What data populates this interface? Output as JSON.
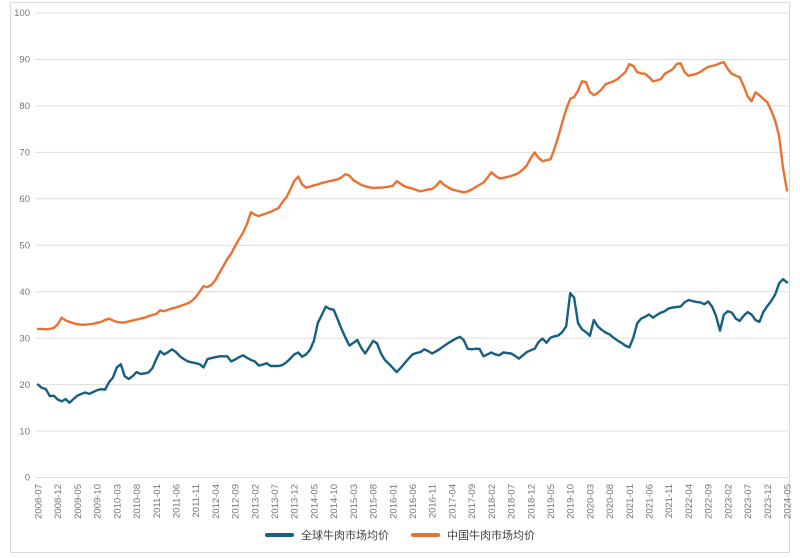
{
  "theme": {
    "background": "#FFFFFF",
    "card_border": "#D8D8D8",
    "gridline_color": "#DCDCDC",
    "tick_label_color": "#767676",
    "legend_text_color": "#3F3F3F"
  },
  "legend": {
    "items": [
      {
        "label": "全球牛肉市场均价",
        "color": "#156082"
      },
      {
        "label": "中国牛肉市场均价",
        "color": "#E97132"
      }
    ]
  },
  "chart_data": {
    "type": "line",
    "title": "",
    "xlabel": "",
    "ylabel": "",
    "ylim": [
      0,
      100
    ],
    "yticks": [
      0,
      10,
      20,
      30,
      40,
      50,
      60,
      70,
      80,
      90,
      100
    ],
    "grid": "horizontal",
    "legend_position": "bottom",
    "x_tick_interval": 5,
    "x_tick_labels": [
      "2008-07",
      "2008-12",
      "2009-05",
      "2009-10",
      "2010-03",
      "2010-08",
      "2011-01",
      "2011-06",
      "2011-11",
      "2012-04",
      "2012-09",
      "2013-02",
      "2013-07",
      "2013-12",
      "2014-05",
      "2014-10",
      "2015-03",
      "2015-08",
      "2016-01",
      "2016-06",
      "2016-11",
      "2017-04",
      "2017-09",
      "2018-02",
      "2018-07",
      "2018-12",
      "2019-05",
      "2019-10",
      "2020-03",
      "2020-08",
      "2021-01",
      "2021-06",
      "2021-11",
      "2022-04",
      "2022-09",
      "2023-02",
      "2023-07",
      "2023-12",
      "2024-05"
    ],
    "x": [
      "2008-07",
      "2008-08",
      "2008-09",
      "2008-10",
      "2008-11",
      "2008-12",
      "2009-01",
      "2009-02",
      "2009-03",
      "2009-04",
      "2009-05",
      "2009-06",
      "2009-07",
      "2009-08",
      "2009-09",
      "2009-10",
      "2009-11",
      "2009-12",
      "2010-01",
      "2010-02",
      "2010-03",
      "2010-04",
      "2010-05",
      "2010-06",
      "2010-07",
      "2010-08",
      "2010-09",
      "2010-10",
      "2010-11",
      "2010-12",
      "2011-01",
      "2011-02",
      "2011-03",
      "2011-04",
      "2011-05",
      "2011-06",
      "2011-07",
      "2011-08",
      "2011-09",
      "2011-10",
      "2011-11",
      "2011-12",
      "2012-01",
      "2012-02",
      "2012-03",
      "2012-04",
      "2012-05",
      "2012-06",
      "2012-07",
      "2012-08",
      "2012-09",
      "2012-10",
      "2012-11",
      "2012-12",
      "2013-01",
      "2013-02",
      "2013-03",
      "2013-04",
      "2013-05",
      "2013-06",
      "2013-07",
      "2013-08",
      "2013-09",
      "2013-10",
      "2013-11",
      "2013-12",
      "2014-01",
      "2014-02",
      "2014-03",
      "2014-04",
      "2014-05",
      "2014-06",
      "2014-07",
      "2014-08",
      "2014-09",
      "2014-10",
      "2014-11",
      "2014-12",
      "2015-01",
      "2015-02",
      "2015-03",
      "2015-04",
      "2015-05",
      "2015-06",
      "2015-07",
      "2015-08",
      "2015-09",
      "2015-10",
      "2015-11",
      "2015-12",
      "2016-01",
      "2016-02",
      "2016-03",
      "2016-04",
      "2016-05",
      "2016-06",
      "2016-07",
      "2016-08",
      "2016-09",
      "2016-10",
      "2016-11",
      "2016-12",
      "2017-01",
      "2017-02",
      "2017-03",
      "2017-04",
      "2017-05",
      "2017-06",
      "2017-07",
      "2017-08",
      "2017-09",
      "2017-10",
      "2017-11",
      "2017-12",
      "2018-01",
      "2018-02",
      "2018-03",
      "2018-04",
      "2018-05",
      "2018-06",
      "2018-07",
      "2018-08",
      "2018-09",
      "2018-10",
      "2018-11",
      "2018-12",
      "2019-01",
      "2019-02",
      "2019-03",
      "2019-04",
      "2019-05",
      "2019-06",
      "2019-07",
      "2019-08",
      "2019-09",
      "2019-10",
      "2019-11",
      "2019-12",
      "2020-01",
      "2020-02",
      "2020-03",
      "2020-04",
      "2020-05",
      "2020-06",
      "2020-07",
      "2020-08",
      "2020-09",
      "2020-10",
      "2020-11",
      "2020-12",
      "2021-01",
      "2021-02",
      "2021-03",
      "2021-04",
      "2021-05",
      "2021-06",
      "2021-07",
      "2021-08",
      "2021-09",
      "2021-10",
      "2021-11",
      "2021-12",
      "2022-01",
      "2022-02",
      "2022-03",
      "2022-04",
      "2022-05",
      "2022-06",
      "2022-07",
      "2022-08",
      "2022-09",
      "2022-10",
      "2022-11",
      "2022-12",
      "2023-01",
      "2023-02",
      "2023-03",
      "2023-04",
      "2023-05",
      "2023-06",
      "2023-07",
      "2023-08",
      "2023-09",
      "2023-10",
      "2023-11",
      "2023-12",
      "2024-01",
      "2024-02",
      "2024-03",
      "2024-04",
      "2024-05"
    ],
    "series": [
      {
        "name": "全球牛肉市场均价",
        "color": "#156082",
        "values": [
          20.0,
          19.3,
          19.0,
          17.5,
          17.6,
          16.8,
          16.4,
          16.9,
          16.1,
          16.9,
          17.6,
          18.0,
          18.3,
          18.0,
          18.4,
          18.8,
          19.0,
          18.9,
          20.5,
          21.5,
          23.7,
          24.4,
          21.8,
          21.2,
          21.8,
          22.7,
          22.3,
          22.4,
          22.6,
          23.5,
          25.5,
          27.2,
          26.5,
          27.0,
          27.6,
          27.0,
          26.1,
          25.5,
          25.0,
          24.8,
          24.6,
          24.4,
          23.7,
          25.5,
          25.7,
          25.9,
          26.1,
          26.1,
          26.1,
          25.0,
          25.4,
          25.9,
          26.3,
          25.8,
          25.3,
          25.0,
          24.1,
          24.3,
          24.6,
          24.0,
          24.0,
          24.0,
          24.2,
          24.8,
          25.6,
          26.5,
          26.9,
          26.0,
          26.5,
          27.5,
          29.4,
          33.3,
          35.0,
          36.8,
          36.3,
          36.1,
          34.1,
          32.0,
          30.1,
          28.4,
          29.0,
          29.6,
          27.9,
          26.7,
          28.0,
          29.4,
          28.9,
          26.7,
          25.3,
          24.5,
          23.6,
          22.7,
          23.6,
          24.6,
          25.6,
          26.5,
          26.8,
          27.0,
          27.6,
          27.2,
          26.7,
          27.2,
          27.7,
          28.3,
          28.9,
          29.4,
          29.9,
          30.3,
          29.6,
          27.7,
          27.6,
          27.7,
          27.7,
          26.1,
          26.5,
          26.9,
          26.5,
          26.3,
          26.9,
          26.8,
          26.7,
          26.2,
          25.6,
          26.3,
          27.0,
          27.4,
          27.7,
          29.2,
          29.9,
          29.0,
          30.1,
          30.4,
          30.6,
          31.3,
          32.6,
          39.7,
          38.7,
          33.2,
          31.9,
          31.3,
          30.5,
          33.9,
          32.5,
          31.8,
          31.2,
          30.8,
          30.1,
          29.5,
          29.0,
          28.4,
          28.0,
          30.1,
          33.2,
          34.2,
          34.6,
          35.1,
          34.4,
          35.0,
          35.5,
          35.8,
          36.4,
          36.6,
          36.7,
          36.8,
          37.7,
          38.2,
          38.0,
          37.8,
          37.7,
          37.3,
          37.9,
          36.8,
          34.8,
          31.6,
          35.1,
          35.8,
          35.5,
          34.2,
          33.7,
          34.8,
          35.6,
          35.1,
          33.9,
          33.5,
          35.6,
          36.9,
          38.0,
          39.4,
          41.8,
          42.7,
          42.0
        ]
      },
      {
        "name": "中国牛肉市场均价",
        "color": "#E97132",
        "values": [
          32.0,
          32.0,
          31.9,
          32.0,
          32.2,
          33.0,
          34.4,
          33.8,
          33.5,
          33.2,
          33.0,
          32.9,
          32.9,
          33.0,
          33.1,
          33.3,
          33.5,
          33.9,
          34.2,
          33.8,
          33.5,
          33.4,
          33.4,
          33.6,
          33.8,
          34.0,
          34.2,
          34.4,
          34.7,
          35.0,
          35.2,
          36.0,
          35.8,
          36.1,
          36.4,
          36.6,
          36.9,
          37.2,
          37.5,
          38.0,
          38.8,
          40.0,
          41.2,
          41.0,
          41.5,
          42.5,
          44.0,
          45.5,
          47.0,
          48.2,
          49.8,
          51.3,
          52.7,
          54.5,
          57.1,
          56.6,
          56.3,
          56.6,
          56.9,
          57.2,
          57.6,
          58.0,
          59.3,
          60.3,
          62.0,
          63.8,
          64.8,
          63.1,
          62.4,
          62.6,
          62.9,
          63.1,
          63.4,
          63.6,
          63.8,
          64.0,
          64.2,
          64.6,
          65.3,
          65.0,
          64.0,
          63.5,
          63.0,
          62.7,
          62.5,
          62.3,
          62.4,
          62.4,
          62.5,
          62.6,
          62.8,
          63.8,
          63.2,
          62.7,
          62.4,
          62.2,
          61.9,
          61.6,
          61.8,
          62.0,
          62.1,
          62.8,
          63.8,
          63.0,
          62.5,
          62.0,
          61.8,
          61.6,
          61.4,
          61.6,
          62.0,
          62.5,
          63.0,
          63.5,
          64.5,
          65.7,
          65.0,
          64.4,
          64.5,
          64.7,
          64.9,
          65.2,
          65.6,
          66.3,
          67.2,
          68.8,
          70.0,
          68.8,
          68.1,
          68.3,
          68.5,
          70.7,
          73.5,
          76.5,
          79.3,
          81.5,
          81.9,
          83.3,
          85.3,
          85.1,
          83.0,
          82.3,
          82.8,
          83.6,
          84.7,
          85.0,
          85.3,
          85.8,
          86.5,
          87.3,
          89.0,
          88.6,
          87.3,
          87.0,
          86.9,
          86.2,
          85.3,
          85.5,
          85.8,
          86.9,
          87.4,
          87.9,
          89.0,
          89.2,
          87.3,
          86.5,
          86.7,
          86.9,
          87.3,
          87.9,
          88.4,
          88.6,
          88.8,
          89.2,
          89.4,
          87.9,
          86.9,
          86.5,
          86.2,
          84.3,
          82.1,
          81.0,
          82.9,
          82.3,
          81.5,
          80.8,
          79.0,
          76.8,
          73.5,
          66.5,
          61.8
        ]
      }
    ]
  }
}
